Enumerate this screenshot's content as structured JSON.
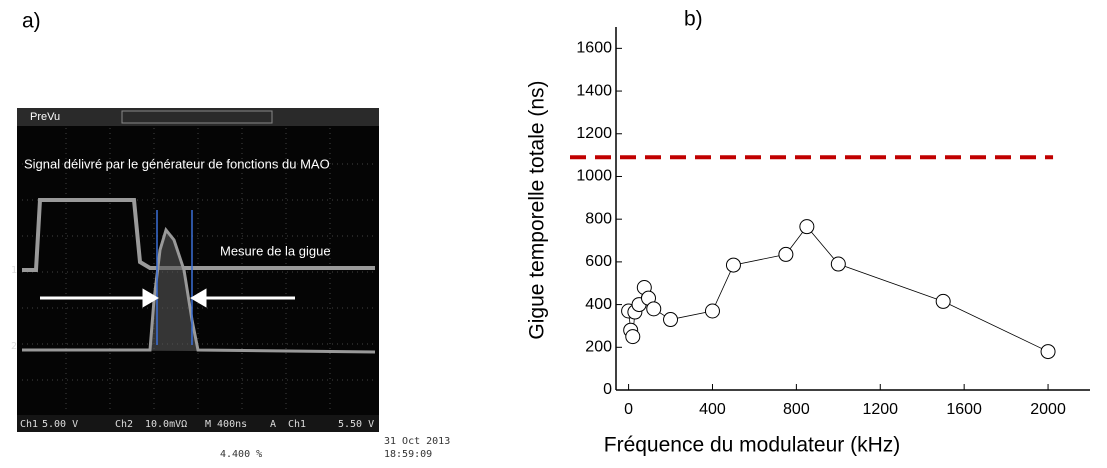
{
  "panel_a": {
    "label": "a)",
    "menu": "PreVu",
    "annotation_signal": "Signal délivré par le générateur de fonctions du MAO",
    "annotation_jitter": "Mesure de la gigue",
    "ch1_marker": "1",
    "ch2_marker": "2",
    "status": [
      "Ch1",
      "5.00 V",
      "Ch2",
      "10.0mVΩ",
      "M 400ns",
      "A",
      "Ch1",
      "5.50 V"
    ],
    "date": "31 Oct  2013",
    "time": "18:59:09",
    "position": "4.400 %"
  },
  "chart_data": {
    "type": "line",
    "panel_label": "b)",
    "x_label": "Fréquence du modulateur (kHz)",
    "y_label": "Gigue temporelle totale (ns)",
    "x": [
      0,
      10,
      20,
      30,
      50,
      75,
      95,
      120,
      200,
      400,
      500,
      750,
      850,
      1000,
      1500,
      2000
    ],
    "series": [
      {
        "color": "#000000",
        "values": [
          370,
          280,
          250,
          365,
          400,
          480,
          430,
          380,
          330,
          370,
          585,
          635,
          765,
          590,
          415,
          180
        ]
      }
    ],
    "reference_line": {
      "value": 1090,
      "color": "#c00000"
    },
    "xlim": [
      -60,
      2200
    ],
    "ylim": [
      0,
      1700
    ],
    "xticks": [
      0,
      400,
      800,
      1200,
      1600,
      2000
    ],
    "yticks": [
      0,
      200,
      400,
      600,
      800,
      1000,
      1200,
      1400,
      1600
    ]
  }
}
